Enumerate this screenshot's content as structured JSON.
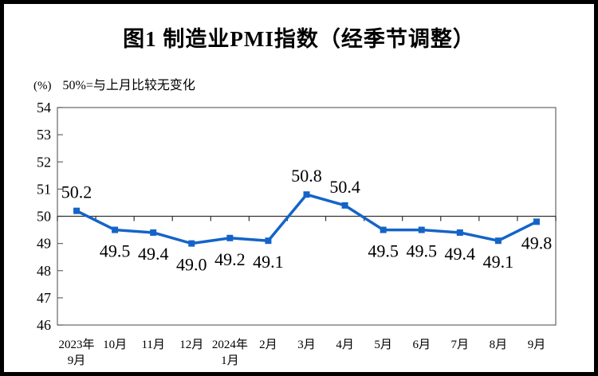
{
  "chart_data": {
    "type": "line",
    "title": "图1  制造业PMI指数（经季节调整）",
    "unit_label": "(%)",
    "note": "50%=与上月比较无变化",
    "categories": [
      "2023年\n9月",
      "10月",
      "11月",
      "12月",
      "2024年\n1月",
      "2月",
      "3月",
      "4月",
      "5月",
      "6月",
      "7月",
      "8月",
      "9月"
    ],
    "values": [
      50.2,
      49.5,
      49.4,
      49.0,
      49.2,
      49.1,
      50.8,
      50.4,
      49.5,
      49.5,
      49.4,
      49.1,
      49.8
    ],
    "label_positions": [
      "above",
      "below",
      "below",
      "below",
      "below",
      "below",
      "above",
      "above",
      "below",
      "below",
      "below",
      "below",
      "below"
    ],
    "xlabel": "",
    "ylabel": "(%)",
    "ylim": [
      46,
      54
    ],
    "ytick_step": 1,
    "baseline": 50,
    "grid": false,
    "legend": "none",
    "series_color": "#1464c8",
    "plot_border_color": "#666666",
    "axis_line_color": "#333333"
  }
}
